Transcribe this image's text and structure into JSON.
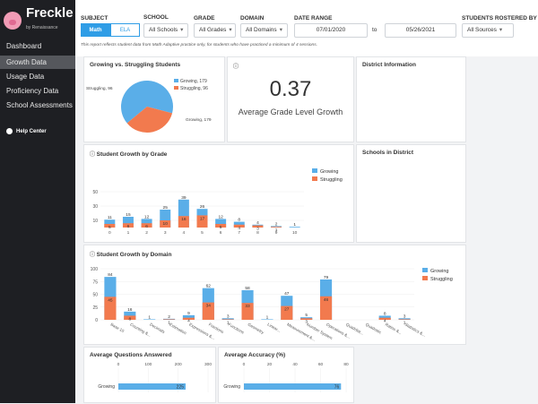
{
  "brand": {
    "name": "Freckle",
    "tagline": "by Renaissance"
  },
  "sidebar": {
    "items": [
      {
        "label": "Dashboard",
        "active": false
      },
      {
        "label": "Growth Data",
        "active": true
      },
      {
        "label": "Usage Data",
        "active": false
      },
      {
        "label": "Proficiency Data",
        "active": false
      },
      {
        "label": "School Assessments",
        "active": false
      }
    ],
    "help": "Help Center"
  },
  "filters": {
    "subject_label": "SUBJECT",
    "subject_options": [
      "Math",
      "ELA"
    ],
    "school_label": "SCHOOL",
    "school_value": "All Schools",
    "grade_label": "GRADE",
    "grade_value": "All Grades",
    "domain_label": "DOMAIN",
    "domain_value": "All Domains",
    "date_label": "DATE RANGE",
    "date_from": "07/01/2020",
    "date_to_label": "to",
    "date_to": "05/26/2021",
    "roster_label": "STUDENTS ROSTERED BY",
    "roster_value": "All Sources",
    "note": "This report reflects student data from Math Adaptive practice only, for students who have practiced a minimum of 4 sessions."
  },
  "colors": {
    "growing": "#5aaee8",
    "struggling": "#f27a4e",
    "accent": "#2f9de6"
  },
  "cards": {
    "pie_title": "Growing vs. Struggling Students",
    "metric_value": "0.37",
    "metric_label": "Average Grade Level Growth",
    "district_title": "District Information",
    "grade_title": "Student Growth by Grade",
    "schools_title": "Schools in District",
    "domain_title": "Student Growth by Domain",
    "questions_title": "Average Questions Answered",
    "accuracy_title": "Average Accuracy (%)"
  },
  "chart_data": [
    {
      "type": "pie",
      "title": "Growing vs. Struggling Students",
      "categories": [
        "Growing",
        "Struggling"
      ],
      "values": [
        179,
        96
      ],
      "labels": [
        "Growing, 179",
        "Struggling, 96"
      ]
    },
    {
      "type": "bar",
      "title": "Student Growth by Grade",
      "categories": [
        "0",
        "1",
        "2",
        "3",
        "4",
        "5",
        "6",
        "7",
        "8",
        "9",
        "10"
      ],
      "series": [
        {
          "name": "Growing",
          "values": [
            11,
            15,
            12,
            25,
            39,
            26,
            12,
            8,
            4,
            2,
            1
          ]
        },
        {
          "name": "Struggling",
          "values": [
            5,
            6,
            6,
            10,
            16,
            17,
            5,
            4,
            3,
            1,
            0
          ]
        }
      ],
      "ylim": [
        0,
        50
      ],
      "yticks": [
        10,
        30,
        50
      ]
    },
    {
      "type": "bar",
      "title": "Student Growth by Domain",
      "categories": [
        "Base 10",
        "Counting &...",
        "Decimals",
        "Estimation",
        "Expressions &...",
        "Fractions",
        "Functions",
        "Geometry",
        "Linear...",
        "Measurement &...",
        "Number System",
        "Operations &...",
        "Quadrilat...",
        "Quadratic",
        "Ratios &...",
        "Statistics &..."
      ],
      "series": [
        {
          "name": "Growing",
          "values": [
            84,
            16,
            1,
            2,
            9,
            62,
            3,
            58,
            1,
            47,
            5,
            79,
            0,
            0,
            8,
            3
          ]
        },
        {
          "name": "Struggling",
          "values": [
            45,
            8,
            0,
            1,
            4,
            34,
            1,
            33,
            0,
            27,
            3,
            46,
            0,
            0,
            4,
            1
          ]
        }
      ],
      "ylim": [
        0,
        100
      ],
      "yticks": [
        0,
        25,
        50,
        75,
        100
      ]
    },
    {
      "type": "bar",
      "title": "Average Questions Answered",
      "categories": [
        "Growing"
      ],
      "values": [
        225
      ],
      "xlim": [
        0,
        300
      ],
      "xticks": [
        0,
        100,
        200,
        300
      ]
    },
    {
      "type": "bar",
      "title": "Average Accuracy (%)",
      "categories": [
        "Growing"
      ],
      "values": [
        76
      ],
      "xlim": [
        0,
        80
      ],
      "xticks": [
        0,
        20,
        40,
        60,
        80
      ]
    }
  ]
}
